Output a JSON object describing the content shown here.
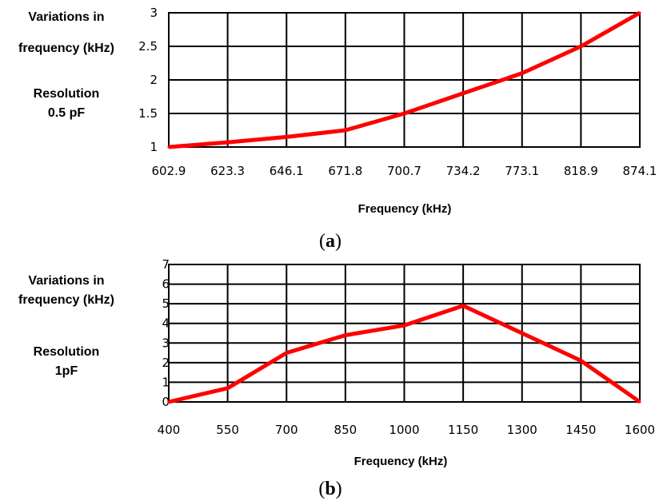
{
  "chart_data": [
    {
      "type": "line",
      "ylabel_lines": [
        "Variations in",
        "frequency (kHz)"
      ],
      "annotation_lines": [
        "Resolution",
        "0.5 pF"
      ],
      "xlabel": "Frequency (kHz)",
      "caption_letter": "a",
      "categories": [
        "602.9",
        "623.3",
        "646.1",
        "671.8",
        "700.7",
        "734.2",
        "773.1",
        "818.9",
        "874.1"
      ],
      "y_ticks": [
        "1",
        "1.5",
        "2",
        "2.5",
        "3"
      ],
      "ylim": [
        1,
        3
      ],
      "series": [
        {
          "values": [
            1.0,
            1.07,
            1.15,
            1.25,
            1.5,
            1.8,
            2.1,
            2.5,
            3.0
          ]
        }
      ],
      "grid": true,
      "line_color": "#ff0000"
    },
    {
      "type": "line",
      "ylabel_lines": [
        "Variations in",
        "frequency (kHz)"
      ],
      "annotation_lines": [
        "Resolution",
        "1pF"
      ],
      "xlabel": "Frequency (kHz)",
      "caption_letter": "b",
      "categories": [
        "400",
        "550",
        "700",
        "850",
        "1000",
        "1150",
        "1300",
        "1450",
        "1600"
      ],
      "y_ticks": [
        "0",
        "1",
        "2",
        "3",
        "4",
        "5",
        "6",
        "7"
      ],
      "ylim": [
        0,
        7
      ],
      "series": [
        {
          "values": [
            0,
            0.7,
            2.5,
            3.4,
            3.9,
            4.9,
            3.5,
            2.1,
            0
          ]
        }
      ],
      "grid": true,
      "line_color": "#ff0000"
    }
  ]
}
